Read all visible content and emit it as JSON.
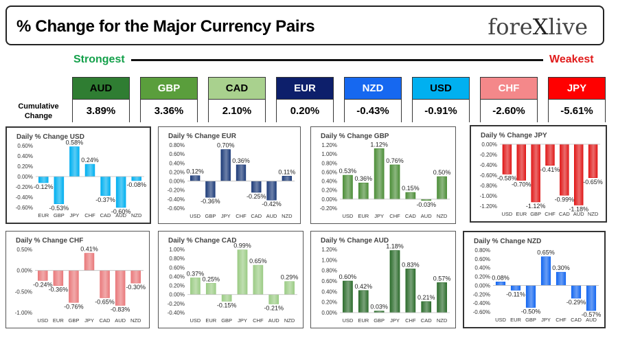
{
  "header": {
    "title": "% Change for the Major Currency Pairs",
    "logo": "forexlive"
  },
  "strength": {
    "strongest": "Strongest",
    "weakest": "Weakest",
    "cumulative_label": "Cumulative Change"
  },
  "currencies": [
    {
      "code": "AUD",
      "value": "3.89%",
      "color": "#2f7d32",
      "text": "#000"
    },
    {
      "code": "GBP",
      "value": "3.36%",
      "color": "#5a9e3c",
      "text": "#fff"
    },
    {
      "code": "CAD",
      "value": "2.10%",
      "color": "#a9d18e",
      "text": "#000"
    },
    {
      "code": "EUR",
      "value": "0.20%",
      "color": "#0d1f6b",
      "text": "#fff"
    },
    {
      "code": "NZD",
      "value": "-0.43%",
      "color": "#1668f0",
      "text": "#fff"
    },
    {
      "code": "USD",
      "value": "-0.91%",
      "color": "#00b0f0",
      "text": "#000"
    },
    {
      "code": "CHF",
      "value": "-2.60%",
      "color": "#f4888a",
      "text": "#fff"
    },
    {
      "code": "JPY",
      "value": "-5.61%",
      "color": "#ff0000",
      "text": "#fff"
    }
  ],
  "chart_data": [
    {
      "type": "bar",
      "title": "Daily % Change USD",
      "categories": [
        "EUR",
        "GBP",
        "JPY",
        "CHF",
        "CAD",
        "AUD",
        "NZD"
      ],
      "values": [
        -0.12,
        -0.53,
        0.58,
        0.24,
        -0.37,
        -0.6,
        -0.08
      ],
      "labels": [
        "-0.12%",
        "-0.53%",
        "0.58%",
        "0.24%",
        "-0.37%",
        "-0.60%",
        "-0.08%"
      ],
      "ylim": [
        -0.6,
        0.6
      ],
      "ticks": [
        "0.60%",
        "0.40%",
        "0.20%",
        "0.00%",
        "-0.20%",
        "-0.40%",
        "-0.60%"
      ],
      "tickvals": [
        0.6,
        0.4,
        0.2,
        0,
        -0.2,
        -0.4,
        -0.6
      ],
      "color": "#00b0f0"
    },
    {
      "type": "bar",
      "title": "Daily % Change EUR",
      "categories": [
        "USD",
        "GBP",
        "JPY",
        "CHF",
        "CAD",
        "AUD",
        "NZD"
      ],
      "values": [
        0.12,
        -0.36,
        0.7,
        0.36,
        -0.25,
        -0.42,
        0.11
      ],
      "labels": [
        "0.12%",
        "-0.36%",
        "0.70%",
        "0.36%",
        "-0.25%",
        "-0.42%",
        "0.11%"
      ],
      "ylim": [
        -0.6,
        0.8
      ],
      "ticks": [
        "0.80%",
        "0.60%",
        "0.40%",
        "0.20%",
        "0.00%",
        "-0.20%",
        "-0.40%",
        "-0.60%"
      ],
      "tickvals": [
        0.8,
        0.6,
        0.4,
        0.2,
        0,
        -0.2,
        -0.4,
        -0.6
      ],
      "color": "#1f3d7a"
    },
    {
      "type": "bar",
      "title": "Daily % Change GBP",
      "categories": [
        "USD",
        "EUR",
        "JPY",
        "CHF",
        "CAD",
        "AUD",
        "NZD"
      ],
      "values": [
        0.53,
        0.36,
        1.12,
        0.76,
        0.15,
        -0.03,
        0.5
      ],
      "labels": [
        "0.53%",
        "0.36%",
        "1.12%",
        "0.76%",
        "0.15%",
        "-0.03%",
        "0.50%"
      ],
      "ylim": [
        -0.2,
        1.2
      ],
      "ticks": [
        "1.20%",
        "1.00%",
        "0.80%",
        "0.60%",
        "0.40%",
        "0.20%",
        "0.00%",
        "-0.20%"
      ],
      "tickvals": [
        1.2,
        1.0,
        0.8,
        0.6,
        0.4,
        0.2,
        0,
        -0.2
      ],
      "color": "#4e8f3a"
    },
    {
      "type": "bar",
      "title": "Daily % Change JPY",
      "categories": [
        "USD",
        "EUR",
        "GBP",
        "CHF",
        "CAD",
        "AUD",
        "NZD"
      ],
      "values": [
        -0.58,
        -0.7,
        -1.12,
        -0.41,
        -0.99,
        -1.18,
        -0.65
      ],
      "labels": [
        "-0.58%",
        "-0.70%",
        "-1.12%",
        "-0.41%",
        "-0.99%",
        "-1.18%",
        "-0.65%"
      ],
      "ylim": [
        -1.2,
        0.0
      ],
      "ticks": [
        "0.00%",
        "-0.20%",
        "-0.40%",
        "-0.60%",
        "-0.80%",
        "-1.00%",
        "-1.20%"
      ],
      "tickvals": [
        0,
        -0.2,
        -0.4,
        -0.6,
        -0.8,
        -1.0,
        -1.2
      ],
      "color": "#e01b1b"
    },
    {
      "type": "bar",
      "title": "Daily % Change CHF",
      "categories": [
        "USD",
        "EUR",
        "GBP",
        "JPY",
        "CAD",
        "AUD",
        "NZD"
      ],
      "values": [
        -0.24,
        -0.36,
        -0.76,
        0.41,
        -0.65,
        -0.83,
        -0.3
      ],
      "labels": [
        "-0.24%",
        "-0.36%",
        "-0.76%",
        "0.41%",
        "-0.65%",
        "-0.83%",
        "-0.30%"
      ],
      "ylim": [
        -1.0,
        0.5
      ],
      "ticks": [
        "0.50%",
        "0.00%",
        "-0.50%",
        "-1.00%"
      ],
      "tickvals": [
        0.5,
        0,
        -0.5,
        -1.0
      ],
      "color": "#e97a7c"
    },
    {
      "type": "bar",
      "title": "Daily % Change CAD",
      "categories": [
        "USD",
        "EUR",
        "GBP",
        "JPY",
        "CHF",
        "AUD",
        "NZD"
      ],
      "values": [
        0.37,
        0.25,
        -0.15,
        0.99,
        0.65,
        -0.21,
        0.29
      ],
      "labels": [
        "0.37%",
        "0.25%",
        "-0.15%",
        "0.99%",
        "0.65%",
        "-0.21%",
        "0.29%"
      ],
      "ylim": [
        -0.4,
        1.0
      ],
      "ticks": [
        "1.00%",
        "0.80%",
        "0.60%",
        "0.40%",
        "0.20%",
        "0.00%",
        "-0.20%",
        "-0.40%"
      ],
      "tickvals": [
        1.0,
        0.8,
        0.6,
        0.4,
        0.2,
        0,
        -0.2,
        -0.4
      ],
      "color": "#9ccc86"
    },
    {
      "type": "bar",
      "title": "Daily % Change AUD",
      "categories": [
        "USD",
        "EUR",
        "GBP",
        "JPY",
        "CHF",
        "CAD",
        "NZD"
      ],
      "values": [
        0.6,
        0.42,
        0.03,
        1.18,
        0.83,
        0.21,
        0.57
      ],
      "labels": [
        "0.60%",
        "0.42%",
        "0.03%",
        "1.18%",
        "0.83%",
        "0.21%",
        "0.57%"
      ],
      "ylim": [
        0.0,
        1.2
      ],
      "ticks": [
        "1.20%",
        "1.00%",
        "0.80%",
        "0.60%",
        "0.40%",
        "0.20%",
        "0.00%"
      ],
      "tickvals": [
        1.2,
        1.0,
        0.8,
        0.6,
        0.4,
        0.2,
        0
      ],
      "color": "#2f6e2f"
    },
    {
      "type": "bar",
      "title": "Daily % Change NZD",
      "categories": [
        "USD",
        "EUR",
        "GBP",
        "JPY",
        "CHF",
        "CAD",
        "AUD"
      ],
      "values": [
        0.08,
        -0.11,
        -0.5,
        0.65,
        0.3,
        -0.29,
        -0.57
      ],
      "labels": [
        "0.08%",
        "-0.11%",
        "-0.50%",
        "0.65%",
        "0.30%",
        "-0.29%",
        "-0.57%"
      ],
      "ylim": [
        -0.6,
        0.8
      ],
      "ticks": [
        "0.80%",
        "0.60%",
        "0.40%",
        "0.20%",
        "0.00%",
        "-0.20%",
        "-0.40%",
        "-0.60%"
      ],
      "tickvals": [
        0.8,
        0.6,
        0.4,
        0.2,
        0,
        -0.2,
        -0.4,
        -0.6
      ],
      "color": "#1668f0"
    }
  ]
}
